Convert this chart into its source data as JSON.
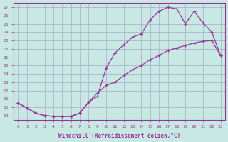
{
  "background_color": "#c8e8e4",
  "grid_color": "#a8a8cc",
  "line_color": "#993399",
  "xlabel": "Windchill (Refroidissement éolien,°C)",
  "xlim": [
    -0.5,
    23.5
  ],
  "ylim": [
    13.5,
    27.5
  ],
  "xticks": [
    0,
    1,
    2,
    3,
    4,
    5,
    6,
    7,
    8,
    9,
    10,
    11,
    12,
    13,
    14,
    15,
    16,
    17,
    18,
    19,
    20,
    21,
    22,
    23
  ],
  "yticks": [
    14,
    15,
    16,
    17,
    18,
    19,
    20,
    21,
    22,
    23,
    24,
    25,
    26,
    27
  ],
  "curve_x": [
    0,
    1,
    2,
    3,
    4,
    5,
    6,
    7,
    8,
    9,
    10,
    11,
    12,
    13,
    14,
    15,
    16,
    17,
    18,
    19,
    20,
    21,
    22,
    23
  ],
  "curve_y": [
    15.5,
    14.9,
    14.3,
    14.0,
    13.9,
    13.9,
    13.9,
    14.3,
    15.6,
    16.3,
    19.7,
    21.5,
    22.5,
    23.4,
    23.8,
    25.5,
    26.5,
    27.0,
    26.8,
    25.0,
    26.5,
    25.1,
    24.0,
    21.2
  ],
  "diag_x": [
    0,
    1,
    2,
    3,
    4,
    5,
    6,
    7,
    8,
    9,
    10,
    11,
    12,
    13,
    14,
    15,
    16,
    17,
    18,
    19,
    20,
    21,
    22,
    23
  ],
  "diag_y": [
    15.5,
    14.9,
    14.3,
    14.0,
    13.9,
    13.9,
    13.9,
    14.3,
    15.6,
    16.7,
    17.6,
    18.0,
    18.8,
    19.5,
    20.0,
    20.7,
    21.2,
    21.8,
    22.1,
    22.4,
    22.7,
    22.9,
    23.0,
    21.2
  ]
}
